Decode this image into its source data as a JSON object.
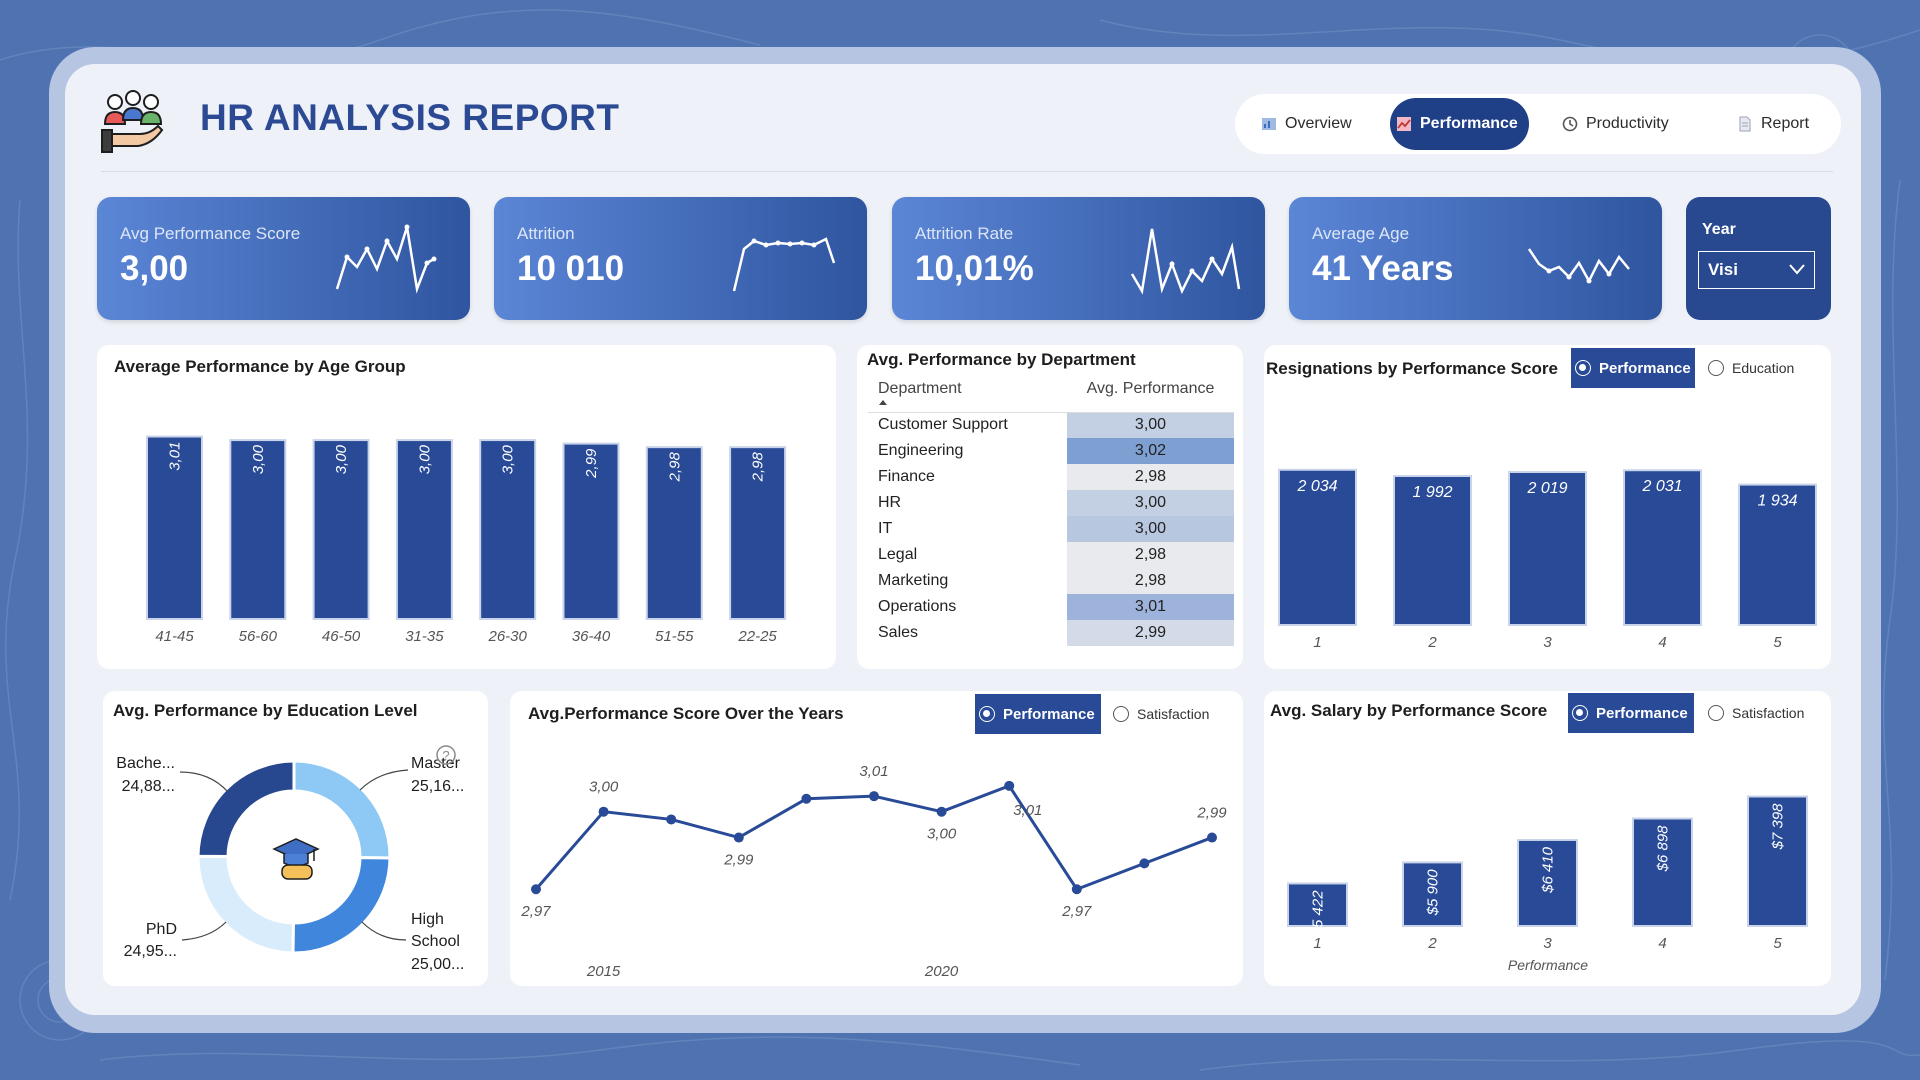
{
  "header": {
    "title": "HR ANALYSIS REPORT",
    "nav": [
      {
        "label": "Overview",
        "icon": "chart-icon",
        "active": false
      },
      {
        "label": "Performance",
        "icon": "analytics-icon",
        "active": true
      },
      {
        "label": "Productivity",
        "icon": "clock-icon",
        "active": false
      },
      {
        "label": "Report",
        "icon": "document-icon",
        "active": false
      }
    ]
  },
  "kpis": [
    {
      "label": "Avg Performance Score",
      "value": "3,00"
    },
    {
      "label": "Attrition",
      "value": "10 010"
    },
    {
      "label": "Attrition Rate",
      "value": "10,01%"
    },
    {
      "label": "Average Age",
      "value": "41 Years"
    }
  ],
  "year_filter": {
    "label": "Year",
    "value": "Visi"
  },
  "age_chart": {
    "title": "Average Performance by Age Group",
    "chart_data": {
      "type": "bar",
      "categories": [
        "41-45",
        "56-60",
        "46-50",
        "31-35",
        "26-30",
        "36-40",
        "51-55",
        "22-25"
      ],
      "values": [
        3.01,
        3.0,
        3.0,
        3.0,
        3.0,
        2.99,
        2.98,
        2.98
      ],
      "labels": [
        "3,01",
        "3,00",
        "3,00",
        "3,00",
        "3,00",
        "2,99",
        "2,98",
        "2,98"
      ]
    }
  },
  "department_table": {
    "title": "Avg. Performance by Department",
    "headers": [
      "Department",
      "Avg. Performance"
    ],
    "rows": [
      {
        "name": "Customer Support",
        "value": "3,00"
      },
      {
        "name": "Engineering",
        "value": "3,02"
      },
      {
        "name": "Finance",
        "value": "2,98"
      },
      {
        "name": "HR",
        "value": "3,00"
      },
      {
        "name": "IT",
        "value": "3,00"
      },
      {
        "name": "Legal",
        "value": "2,98"
      },
      {
        "name": "Marketing",
        "value": "2,98"
      },
      {
        "name": "Operations",
        "value": "3,01"
      },
      {
        "name": "Sales",
        "value": "2,99"
      }
    ],
    "shade_colors": [
      "#c3cfe3",
      "#7e9fd2",
      "#e8eaee",
      "#c3cfe3",
      "#b8c7e0",
      "#e8eaee",
      "#e8eaee",
      "#9db3dc",
      "#d3dbe9"
    ]
  },
  "resignations": {
    "title": "Resignations by Performance Score",
    "toggle_on": "Performance",
    "toggle_off": "Education",
    "chart_data": {
      "type": "bar",
      "categories": [
        "1",
        "2",
        "3",
        "4",
        "5"
      ],
      "values": [
        2034,
        1992,
        2019,
        2031,
        1934
      ],
      "labels": [
        "2 034",
        "1 992",
        "2 019",
        "2 031",
        "1 934"
      ]
    }
  },
  "education": {
    "title": "Avg. Performance by Education Level",
    "chart_data": {
      "type": "pie",
      "slices": [
        {
          "name": "Master",
          "label": "Master",
          "value": "25,16...",
          "share": 25.16
        },
        {
          "name": "High School",
          "label_line1": "High",
          "label_line2": "School",
          "value": "25,00...",
          "share": 25.0
        },
        {
          "name": "PhD",
          "label": "PhD",
          "value": "24,95...",
          "share": 24.95
        },
        {
          "name": "Bachelor",
          "label": "Bache...",
          "value": "24,88...",
          "share": 24.88
        }
      ],
      "colors": [
        "#8ec8f4",
        "#3f86dc",
        "#d9ecfb",
        "#27488f"
      ]
    }
  },
  "years_chart": {
    "title": "Avg.Performance Score Over the Years",
    "toggle_on": "Performance",
    "toggle_off": "Satisfaction",
    "chart_data": {
      "type": "line",
      "x": [
        2014,
        2015,
        2016,
        2017,
        2018,
        2019,
        2020,
        2021,
        2022,
        2023,
        2024
      ],
      "values": [
        2.97,
        3.0,
        2.997,
        2.99,
        3.005,
        3.006,
        3.0,
        3.01,
        2.97,
        2.98,
        2.99
      ],
      "point_labels": [
        {
          "index": 0,
          "text": "2,97",
          "pos": "below"
        },
        {
          "index": 1,
          "text": "3,00",
          "pos": "above"
        },
        {
          "index": 3,
          "text": "2,99",
          "pos": "below"
        },
        {
          "index": 5,
          "text": "3,01",
          "pos": "above"
        },
        {
          "index": 6,
          "text": "3,00",
          "pos": "below"
        },
        {
          "index": 7,
          "text": "3,01",
          "pos": "right-below"
        },
        {
          "index": 8,
          "text": "2,97",
          "pos": "below"
        },
        {
          "index": 10,
          "text": "2,99",
          "pos": "above"
        }
      ],
      "x_ticks": [
        {
          "index": 1,
          "text": "2015"
        },
        {
          "index": 6,
          "text": "2020"
        }
      ],
      "ylim": [
        2.955,
        3.02
      ]
    }
  },
  "salary_chart": {
    "title": "Avg. Salary by Performance Score",
    "toggle_on": "Performance",
    "toggle_off": "Satisfaction",
    "chart_data": {
      "type": "bar",
      "categories": [
        "1",
        "2",
        "3",
        "4",
        "5"
      ],
      "values": [
        5422,
        5900,
        6410,
        6898,
        7398
      ],
      "labels": [
        "$5 422",
        "$5 900",
        "$6 410",
        "$6 898",
        "$7 398"
      ],
      "xlabel": "Performance"
    }
  },
  "colors": {
    "bar": "#284a97",
    "bar_outline": "#c9d4ea",
    "title_blue": "#2c4a93"
  }
}
